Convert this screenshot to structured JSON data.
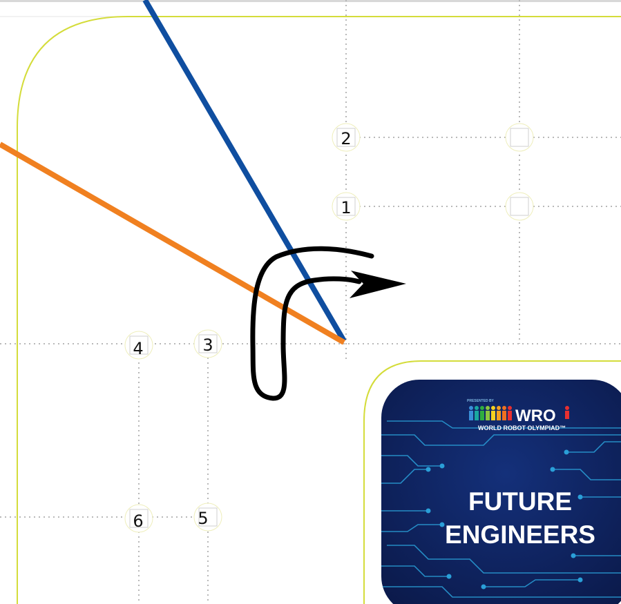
{
  "mat": {
    "markers": [
      {
        "id": "marker-1",
        "label": "1"
      },
      {
        "id": "marker-2",
        "label": "2"
      },
      {
        "id": "marker-3",
        "label": "3"
      },
      {
        "id": "marker-4",
        "label": "4"
      },
      {
        "id": "marker-5",
        "label": "5"
      },
      {
        "id": "marker-6",
        "label": "6"
      },
      {
        "id": "marker-empty-a",
        "label": ""
      },
      {
        "id": "marker-empty-b",
        "label": ""
      }
    ],
    "colors": {
      "boundary": "#d4dc3a",
      "grid": "#b8b8b8",
      "blue_line": "#0f4ea0",
      "orange_line": "#f08020",
      "arrow": "#000000",
      "panel_bg": "#0b1a4a",
      "circuit": "#2a9fd8"
    }
  },
  "logo": {
    "presented_by": "PRESENTED BY",
    "brand": "WRO",
    "subtitle": "WORLD ROBOT OLYMPIAD™"
  },
  "panel": {
    "title_line1": "FUTURE",
    "title_line2": "ENGINEERS"
  }
}
